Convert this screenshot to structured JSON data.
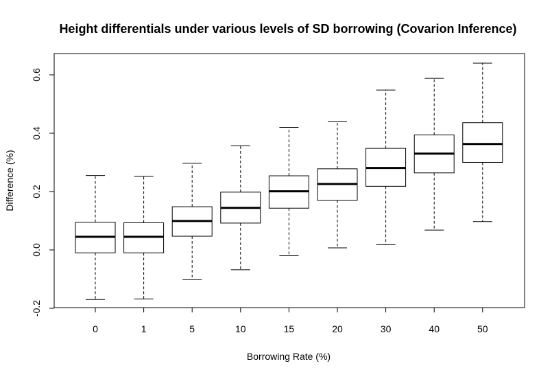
{
  "chart_data": {
    "type": "boxplot",
    "title": "Height differentials under various levels of SD borrowing (Covarion Inference)",
    "xlabel": "Borrowing Rate (%)",
    "ylabel": "Difference (%)",
    "ylim": [
      -0.2,
      0.65
    ],
    "yticks": [
      "-0.2",
      "0.0",
      "0.2",
      "0.4",
      "0.6"
    ],
    "categories": [
      "0",
      "1",
      "5",
      "10",
      "15",
      "20",
      "30",
      "40",
      "50"
    ],
    "boxes": [
      {
        "category": "0",
        "whisker_low": -0.17,
        "q1": -0.01,
        "median": 0.045,
        "q3": 0.095,
        "whisker_high": 0.255
      },
      {
        "category": "1",
        "whisker_low": -0.168,
        "q1": -0.01,
        "median": 0.045,
        "q3": 0.093,
        "whisker_high": 0.252
      },
      {
        "category": "5",
        "whisker_low": -0.102,
        "q1": 0.047,
        "median": 0.099,
        "q3": 0.148,
        "whisker_high": 0.297
      },
      {
        "category": "10",
        "whisker_low": -0.068,
        "q1": 0.092,
        "median": 0.144,
        "q3": 0.198,
        "whisker_high": 0.357
      },
      {
        "category": "15",
        "whisker_low": -0.02,
        "q1": 0.143,
        "median": 0.201,
        "q3": 0.254,
        "whisker_high": 0.42
      },
      {
        "category": "20",
        "whisker_low": 0.007,
        "q1": 0.17,
        "median": 0.226,
        "q3": 0.278,
        "whisker_high": 0.441
      },
      {
        "category": "30",
        "whisker_low": 0.018,
        "q1": 0.218,
        "median": 0.281,
        "q3": 0.348,
        "whisker_high": 0.548
      },
      {
        "category": "40",
        "whisker_low": 0.068,
        "q1": 0.264,
        "median": 0.33,
        "q3": 0.394,
        "whisker_high": 0.588
      },
      {
        "category": "50",
        "whisker_low": 0.097,
        "q1": 0.3,
        "median": 0.363,
        "q3": 0.436,
        "whisker_high": 0.64
      }
    ],
    "grid": false,
    "legend": "none"
  }
}
